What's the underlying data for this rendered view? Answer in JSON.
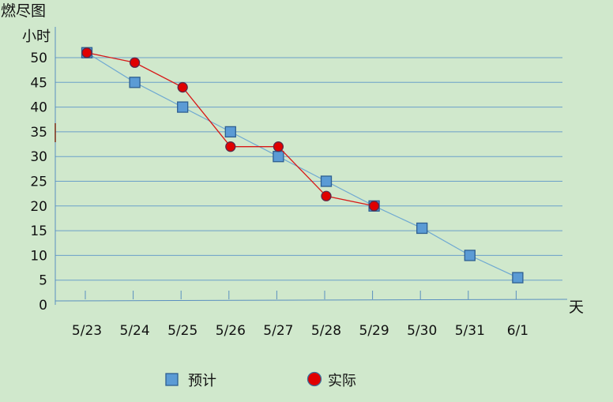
{
  "chart_data": {
    "type": "line",
    "title": "燃尽图",
    "ylabel": "小时",
    "xlabel": "天",
    "categories": [
      "5/23",
      "5/24",
      "5/25",
      "5/26",
      "5/27",
      "5/28",
      "5/29",
      "5/30",
      "5/31",
      "6/1"
    ],
    "yticks": [
      0,
      5,
      10,
      15,
      20,
      25,
      30,
      35,
      40,
      45,
      50
    ],
    "ylim": [
      0,
      52
    ],
    "grid": true,
    "legend_position": "bottom",
    "series": [
      {
        "name": "预计",
        "marker": "square",
        "color": "#5b9bd5",
        "values": [
          51,
          45,
          40,
          35,
          30,
          25,
          20,
          15.5,
          10,
          5.5
        ]
      },
      {
        "name": "实际",
        "marker": "circle",
        "color": "#e00000",
        "values": [
          51,
          49,
          44,
          32,
          32,
          22,
          20,
          null,
          null,
          null
        ]
      }
    ],
    "colors": {
      "background": "#d0e8cc",
      "grid": "#6a9fc9",
      "plan_line": "#6fa9d2",
      "plan_marker_fill": "#5b9bd5",
      "plan_marker_stroke": "#2e5f91",
      "actual_line": "#d81818",
      "actual_marker_fill": "#e00000",
      "actual_marker_stroke": "#5a2b4a"
    }
  }
}
